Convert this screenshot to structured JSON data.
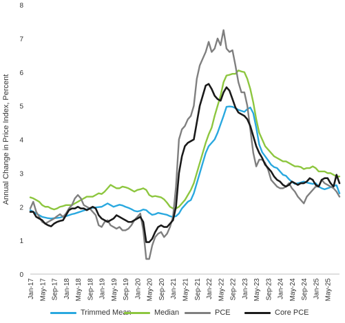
{
  "chart_data": {
    "type": "line",
    "ylabel": "Annual Change in Price Index, Percent",
    "ylim": [
      0,
      8
    ],
    "yticks": [
      0,
      1,
      2,
      3,
      4,
      5,
      6,
      7,
      8
    ],
    "grid": false,
    "legend_position": "bottom",
    "x_tick_labels": [
      "Jan-17",
      "May-17",
      "Sep-17",
      "Jan-18",
      "May-18",
      "Sep-18",
      "Jan-19",
      "May-19",
      "Sep-19",
      "Jan-20",
      "May-20",
      "Sep-20",
      "Jan-21",
      "May-21",
      "Sep-21",
      "Jan-22",
      "May-22",
      "Sep-22",
      "Jan-23",
      "May-23",
      "Sep-23",
      "Jan-24",
      "May-24",
      "Sep-24",
      "Jan-25",
      "May-25"
    ],
    "x_start": "Jan-17",
    "x_end": "Jun-25",
    "series": [
      {
        "name": "Trimmed Mean",
        "color": "#29a8df",
        "values": [
          1.9,
          1.85,
          1.8,
          1.75,
          1.7,
          1.68,
          1.66,
          1.65,
          1.66,
          1.67,
          1.68,
          1.7,
          1.72,
          1.75,
          1.78,
          1.8,
          1.83,
          1.86,
          1.89,
          1.92,
          1.95,
          1.97,
          1.98,
          1.99,
          2.0,
          2.05,
          2.1,
          2.05,
          2.0,
          2.03,
          2.06,
          2.04,
          2.0,
          1.97,
          1.93,
          1.88,
          1.86,
          1.88,
          1.92,
          1.9,
          1.82,
          1.76,
          1.78,
          1.82,
          1.8,
          1.78,
          1.76,
          1.72,
          1.7,
          1.72,
          1.8,
          1.95,
          2.05,
          2.15,
          2.2,
          2.4,
          2.7,
          3.0,
          3.3,
          3.6,
          3.8,
          3.9,
          4.0,
          4.2,
          4.45,
          4.7,
          4.97,
          4.98,
          4.97,
          4.93,
          4.88,
          4.85,
          4.82,
          4.9,
          4.95,
          4.78,
          4.35,
          3.85,
          3.62,
          3.5,
          3.38,
          3.25,
          3.18,
          3.15,
          3.05,
          2.95,
          2.92,
          2.82,
          2.74,
          2.68,
          2.7,
          2.72,
          2.75,
          2.72,
          2.7,
          2.68,
          2.7,
          2.6,
          2.55,
          2.52,
          2.55,
          2.58,
          2.62,
          2.64,
          2.4
        ]
      },
      {
        "name": "Median",
        "color": "#8dc63f",
        "values": [
          2.28,
          2.25,
          2.2,
          2.15,
          2.05,
          2.0,
          2.0,
          1.95,
          1.92,
          1.95,
          2.0,
          2.02,
          2.05,
          2.05,
          2.05,
          2.1,
          2.15,
          2.2,
          2.25,
          2.3,
          2.3,
          2.3,
          2.35,
          2.4,
          2.38,
          2.45,
          2.55,
          2.65,
          2.6,
          2.55,
          2.55,
          2.6,
          2.58,
          2.55,
          2.5,
          2.45,
          2.5,
          2.52,
          2.55,
          2.5,
          2.35,
          2.3,
          2.32,
          2.3,
          2.28,
          2.22,
          2.12,
          2.0,
          1.95,
          1.95,
          2.0,
          2.1,
          2.2,
          2.35,
          2.5,
          2.7,
          3.0,
          3.3,
          3.6,
          3.9,
          4.15,
          4.35,
          4.7,
          5.0,
          5.3,
          5.7,
          5.9,
          5.92,
          5.95,
          5.95,
          6.05,
          6.02,
          6.0,
          5.8,
          5.5,
          5.1,
          4.6,
          4.2,
          4.0,
          3.8,
          3.7,
          3.6,
          3.5,
          3.45,
          3.4,
          3.35,
          3.35,
          3.3,
          3.25,
          3.2,
          3.2,
          3.18,
          3.12,
          3.15,
          3.15,
          3.2,
          3.15,
          3.05,
          3.05,
          3.05,
          3.0,
          3.0,
          2.95,
          2.9,
          2.9
        ]
      },
      {
        "name": "PCE",
        "color": "#7f7f7f",
        "values": [
          1.95,
          2.15,
          1.85,
          1.7,
          1.55,
          1.5,
          1.55,
          1.6,
          1.65,
          1.72,
          1.78,
          1.7,
          1.8,
          1.95,
          2.05,
          2.25,
          2.35,
          2.25,
          2.05,
          2.0,
          1.95,
          1.85,
          1.75,
          1.45,
          1.4,
          1.55,
          1.6,
          1.45,
          1.4,
          1.35,
          1.4,
          1.3,
          1.3,
          1.35,
          1.45,
          1.6,
          1.7,
          1.8,
          1.3,
          0.45,
          0.45,
          0.85,
          1.1,
          1.2,
          1.25,
          1.1,
          1.2,
          1.4,
          1.7,
          2.6,
          4.0,
          4.3,
          4.4,
          4.6,
          4.7,
          5.0,
          5.8,
          6.2,
          6.4,
          6.6,
          6.9,
          6.6,
          6.7,
          7.0,
          6.8,
          7.25,
          6.7,
          6.6,
          6.65,
          6.2,
          5.7,
          5.4,
          5.4,
          5.0,
          4.3,
          3.6,
          3.2,
          3.4,
          3.4,
          3.3,
          3.1,
          2.8,
          2.7,
          2.6,
          2.55,
          2.55,
          2.6,
          2.7,
          2.55,
          2.45,
          2.3,
          2.2,
          2.1,
          2.3,
          2.4,
          2.5,
          2.6,
          2.6,
          2.8,
          2.7,
          2.65,
          2.6,
          2.55,
          2.45,
          2.3
        ]
      },
      {
        "name": "Core PCE",
        "color": "#1a1a1a",
        "values": [
          1.85,
          1.85,
          1.7,
          1.65,
          1.6,
          1.5,
          1.45,
          1.42,
          1.5,
          1.55,
          1.58,
          1.6,
          1.75,
          1.9,
          1.95,
          1.95,
          2.0,
          1.95,
          1.95,
          1.9,
          1.95,
          2.0,
          1.95,
          1.75,
          1.65,
          1.6,
          1.55,
          1.6,
          1.65,
          1.75,
          1.7,
          1.65,
          1.6,
          1.55,
          1.55,
          1.6,
          1.65,
          1.7,
          1.55,
          0.95,
          0.95,
          1.05,
          1.25,
          1.4,
          1.45,
          1.4,
          1.4,
          1.5,
          1.6,
          2.0,
          3.0,
          3.5,
          3.8,
          3.9,
          3.95,
          4.0,
          4.5,
          5.0,
          5.3,
          5.6,
          5.65,
          5.5,
          5.3,
          5.2,
          5.15,
          5.4,
          5.55,
          5.45,
          5.2,
          4.95,
          4.8,
          4.75,
          4.7,
          4.6,
          4.4,
          4.1,
          3.8,
          3.6,
          3.45,
          3.25,
          3.15,
          3.05,
          2.9,
          2.8,
          2.75,
          2.65,
          2.6,
          2.65,
          2.75,
          2.7,
          2.65,
          2.7,
          2.7,
          2.75,
          2.85,
          2.8,
          2.65,
          2.6,
          2.8,
          2.85,
          2.85,
          2.7,
          2.6,
          2.95,
          2.7
        ]
      }
    ]
  }
}
